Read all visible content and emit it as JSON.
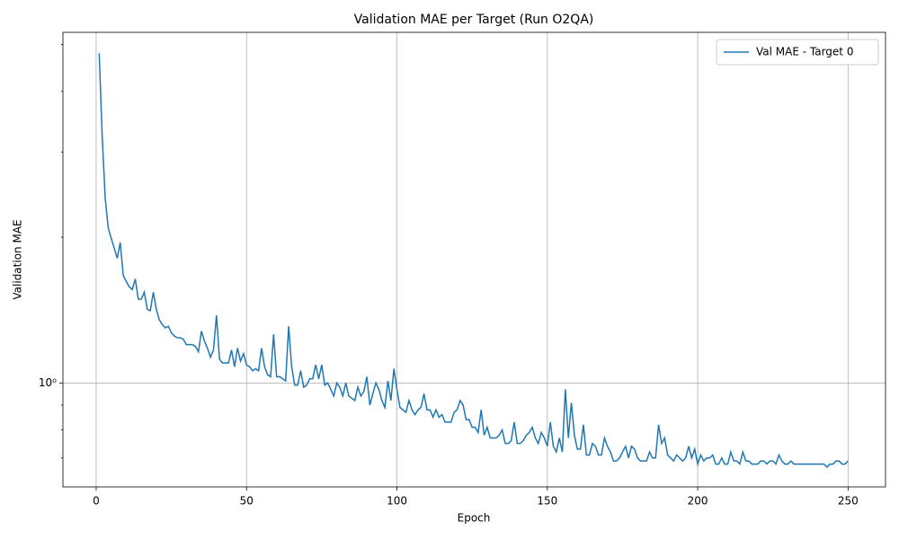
{
  "chart_data": {
    "type": "line",
    "title": "Validation MAE per Target (Run O2QA)",
    "xlabel": "Epoch",
    "ylabel": "Validation MAE",
    "yscale": "log",
    "grid": true,
    "legend": "upper right",
    "x": [
      1,
      2,
      3,
      4,
      5,
      6,
      7,
      8,
      9,
      10,
      11,
      12,
      13,
      14,
      15,
      16,
      17,
      18,
      19,
      20,
      21,
      22,
      23,
      24,
      25,
      26,
      27,
      28,
      29,
      30,
      31,
      32,
      33,
      34,
      35,
      36,
      37,
      38,
      39,
      40,
      41,
      42,
      43,
      44,
      45,
      46,
      47,
      48,
      49,
      50,
      51,
      52,
      53,
      54,
      55,
      56,
      57,
      58,
      59,
      60,
      61,
      62,
      63,
      64,
      65,
      66,
      67,
      68,
      69,
      70,
      71,
      72,
      73,
      74,
      75,
      76,
      77,
      78,
      79,
      80,
      81,
      82,
      83,
      84,
      85,
      86,
      87,
      88,
      89,
      90,
      91,
      92,
      93,
      94,
      95,
      96,
      97,
      98,
      99,
      100,
      101,
      102,
      103,
      104,
      105,
      106,
      107,
      108,
      109,
      110,
      111,
      112,
      113,
      114,
      115,
      116,
      117,
      118,
      119,
      120,
      121,
      122,
      123,
      124,
      125,
      126,
      127,
      128,
      129,
      130,
      131,
      132,
      133,
      134,
      135,
      136,
      137,
      138,
      139,
      140,
      141,
      142,
      143,
      144,
      145,
      146,
      147,
      148,
      149,
      150,
      151,
      152,
      153,
      154,
      155,
      156,
      157,
      158,
      159,
      160,
      161,
      162,
      163,
      164,
      165,
      166,
      167,
      168,
      169,
      170,
      171,
      172,
      173,
      174,
      175,
      176,
      177,
      178,
      179,
      180,
      181,
      182,
      183,
      184,
      185,
      186,
      187,
      188,
      189,
      190,
      191,
      192,
      193,
      194,
      195,
      196,
      197,
      198,
      199,
      200,
      201,
      202,
      203,
      204,
      205,
      206,
      207,
      208,
      209,
      210,
      211,
      212,
      213,
      214,
      215,
      216,
      217,
      218,
      219,
      220,
      221,
      222,
      223,
      224,
      225,
      226,
      227,
      228,
      229,
      230,
      231,
      232,
      233,
      234,
      235,
      236,
      237,
      238,
      239,
      240,
      241,
      242,
      243,
      244,
      245,
      246,
      247,
      248,
      249,
      250
    ],
    "series": [
      {
        "name": "Val MAE - Target 0",
        "color": "#1f77b4",
        "values": [
          4.8,
          3.24,
          2.41,
          2.09,
          1.99,
          1.9,
          1.81,
          1.95,
          1.67,
          1.62,
          1.58,
          1.56,
          1.64,
          1.49,
          1.49,
          1.54,
          1.42,
          1.41,
          1.54,
          1.42,
          1.35,
          1.32,
          1.3,
          1.31,
          1.27,
          1.25,
          1.24,
          1.24,
          1.23,
          1.2,
          1.2,
          1.2,
          1.19,
          1.16,
          1.28,
          1.22,
          1.18,
          1.13,
          1.17,
          1.38,
          1.12,
          1.1,
          1.1,
          1.1,
          1.17,
          1.08,
          1.18,
          1.11,
          1.15,
          1.09,
          1.08,
          1.06,
          1.07,
          1.06,
          1.18,
          1.08,
          1.04,
          1.03,
          1.26,
          1.03,
          1.03,
          1.02,
          1.01,
          1.31,
          1.08,
          0.99,
          0.99,
          1.06,
          0.98,
          0.99,
          1.02,
          1.02,
          1.09,
          1.02,
          1.09,
          0.99,
          1.0,
          0.97,
          0.94,
          1.0,
          0.98,
          0.94,
          1.0,
          0.94,
          0.93,
          0.92,
          0.98,
          0.94,
          0.96,
          1.03,
          0.9,
          0.95,
          1.0,
          0.97,
          0.92,
          0.89,
          1.01,
          0.92,
          1.07,
          0.97,
          0.89,
          0.88,
          0.87,
          0.92,
          0.88,
          0.86,
          0.88,
          0.89,
          0.95,
          0.88,
          0.88,
          0.85,
          0.88,
          0.85,
          0.86,
          0.83,
          0.83,
          0.83,
          0.87,
          0.88,
          0.92,
          0.9,
          0.84,
          0.84,
          0.81,
          0.81,
          0.79,
          0.88,
          0.78,
          0.81,
          0.77,
          0.77,
          0.77,
          0.78,
          0.8,
          0.75,
          0.75,
          0.76,
          0.83,
          0.75,
          0.75,
          0.76,
          0.78,
          0.79,
          0.81,
          0.77,
          0.75,
          0.79,
          0.77,
          0.74,
          0.83,
          0.74,
          0.72,
          0.77,
          0.72,
          0.97,
          0.77,
          0.91,
          0.78,
          0.73,
          0.73,
          0.82,
          0.71,
          0.71,
          0.75,
          0.74,
          0.71,
          0.71,
          0.77,
          0.74,
          0.72,
          0.69,
          0.69,
          0.7,
          0.72,
          0.74,
          0.7,
          0.74,
          0.73,
          0.7,
          0.69,
          0.69,
          0.69,
          0.72,
          0.7,
          0.7,
          0.82,
          0.75,
          0.77,
          0.71,
          0.7,
          0.69,
          0.71,
          0.7,
          0.69,
          0.7,
          0.74,
          0.7,
          0.73,
          0.68,
          0.71,
          0.69,
          0.7,
          0.7,
          0.71,
          0.68,
          0.68,
          0.7,
          0.68,
          0.68,
          0.72,
          0.69,
          0.69,
          0.68,
          0.72,
          0.69,
          0.69,
          0.68,
          0.68,
          0.68,
          0.69,
          0.69,
          0.68,
          0.69,
          0.69,
          0.68,
          0.71,
          0.69,
          0.68,
          0.68,
          0.69,
          0.68,
          0.68,
          0.68,
          0.68,
          0.68,
          0.68,
          0.68,
          0.68,
          0.68,
          0.68,
          0.68,
          0.67,
          0.68,
          0.68,
          0.69,
          0.69,
          0.68,
          0.68,
          0.69
        ]
      }
    ],
    "xlim": [
      -11.05,
      262.45
    ],
    "xticks": [
      0,
      50,
      100,
      150,
      200,
      250
    ],
    "ylim": [
      0.61,
      5.3
    ],
    "yticks": [
      {
        "value": 1,
        "label": "10⁰"
      }
    ],
    "yminorticks": [
      0.7,
      0.8,
      0.9,
      2,
      3,
      4,
      5
    ]
  }
}
